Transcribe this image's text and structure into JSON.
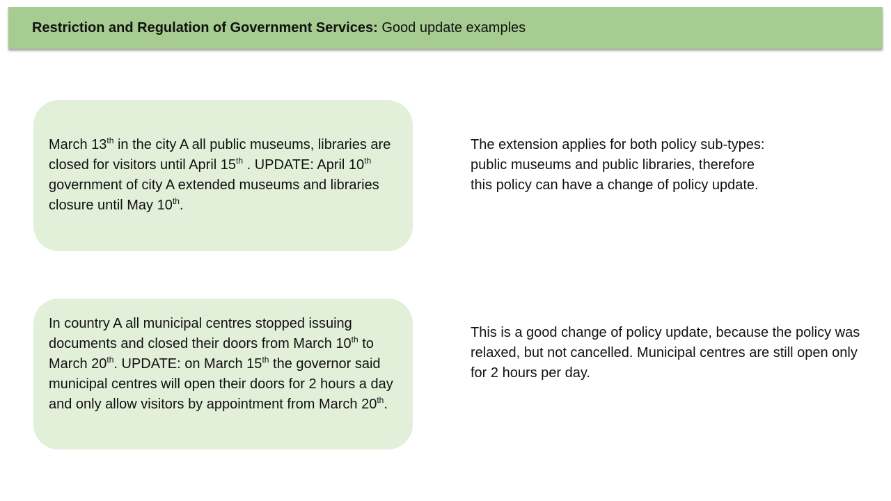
{
  "header": {
    "title_bold": "Restriction and Regulation of Government Services:",
    "title_rest": " Good update examples"
  },
  "examples": [
    {
      "card": {
        "p1": "March 13",
        "sup1": "th",
        "p2": " in the city A all public museums, libraries are closed for visitors until April 15",
        "sup2": "th",
        "p3": " . UPDATE: April 10",
        "sup3": "th",
        "p4": "  government of city A extended museums and libraries closure until May 10",
        "sup4": "th",
        "p5": "."
      },
      "note": "The extension applies for both policy sub-types: public museums and public libraries, therefore this policy can have a change of policy update."
    },
    {
      "card": {
        "p1": "In country A all municipal centres stopped issuing documents and closed their doors from March 10",
        "sup1": "th",
        "p2": " to March 20",
        "sup2": "th",
        "p3": ". UPDATE: on March 15",
        "sup3": "th",
        "p4": " the governor said municipal centres will open their doors for 2 hours a day and only allow visitors by appointment from March 20",
        "sup4": "th",
        "p5": "."
      },
      "note": "This is a good change of policy update, because the policy was relaxed, but not cancelled. Municipal centres are still open only for 2 hours per day."
    }
  ]
}
